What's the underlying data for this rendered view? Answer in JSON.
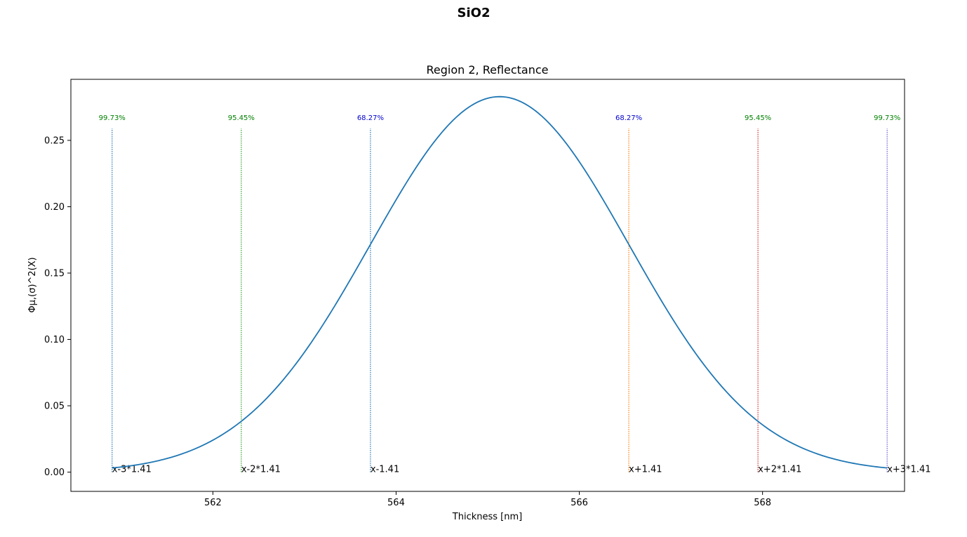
{
  "suptitle": "SiO2",
  "chart_data": {
    "type": "line",
    "title": "Region 2, Reflectance",
    "xlabel": "Thickness [nm]",
    "ylabel": "Φμ,(σ)^2(X)",
    "xlim": [
      560.45,
      569.55
    ],
    "ylim": [
      -0.0145,
      0.296
    ],
    "grid": false,
    "xticks": [
      562,
      564,
      566,
      568
    ],
    "yticks": [
      0.0,
      0.05,
      0.1,
      0.15,
      0.2,
      0.25
    ],
    "xtick_labels": [
      "562",
      "564",
      "566",
      "568"
    ],
    "ytick_labels": [
      "0.00",
      "0.05",
      "0.10",
      "0.15",
      "0.20",
      "0.25"
    ],
    "series": [
      {
        "color": "#1f77b4",
        "distribution": {
          "kind": "normal",
          "mean": 565.13,
          "sigma": 1.41
        },
        "x_range": [
          560.9,
          569.36
        ]
      }
    ],
    "markers": [
      {
        "x": 560.9,
        "label": "x-3*1.41",
        "percent": "99.73%",
        "line_color": "#1f77b4",
        "percent_color": "#008000"
      },
      {
        "x": 562.31,
        "label": "x-2*1.41",
        "percent": "95.45%",
        "line_color": "#2ca02c",
        "percent_color": "#008000"
      },
      {
        "x": 563.72,
        "label": "x-1.41",
        "percent": "68.27%",
        "line_color": "#1f77b4",
        "percent_color": "#0000cd"
      },
      {
        "x": 566.54,
        "label": "x+1.41",
        "percent": "68.27%",
        "line_color": "#ff7f0e",
        "percent_color": "#0000cd"
      },
      {
        "x": 567.95,
        "label": "x+2*1.41",
        "percent": "95.45%",
        "line_color": "#d62728",
        "percent_color": "#008000"
      },
      {
        "x": 569.36,
        "label": "x+3*1.41",
        "percent": "99.73%",
        "line_color": "#6a5acd",
        "percent_color": "#008000"
      }
    ],
    "marker_line_top": 0.259
  }
}
